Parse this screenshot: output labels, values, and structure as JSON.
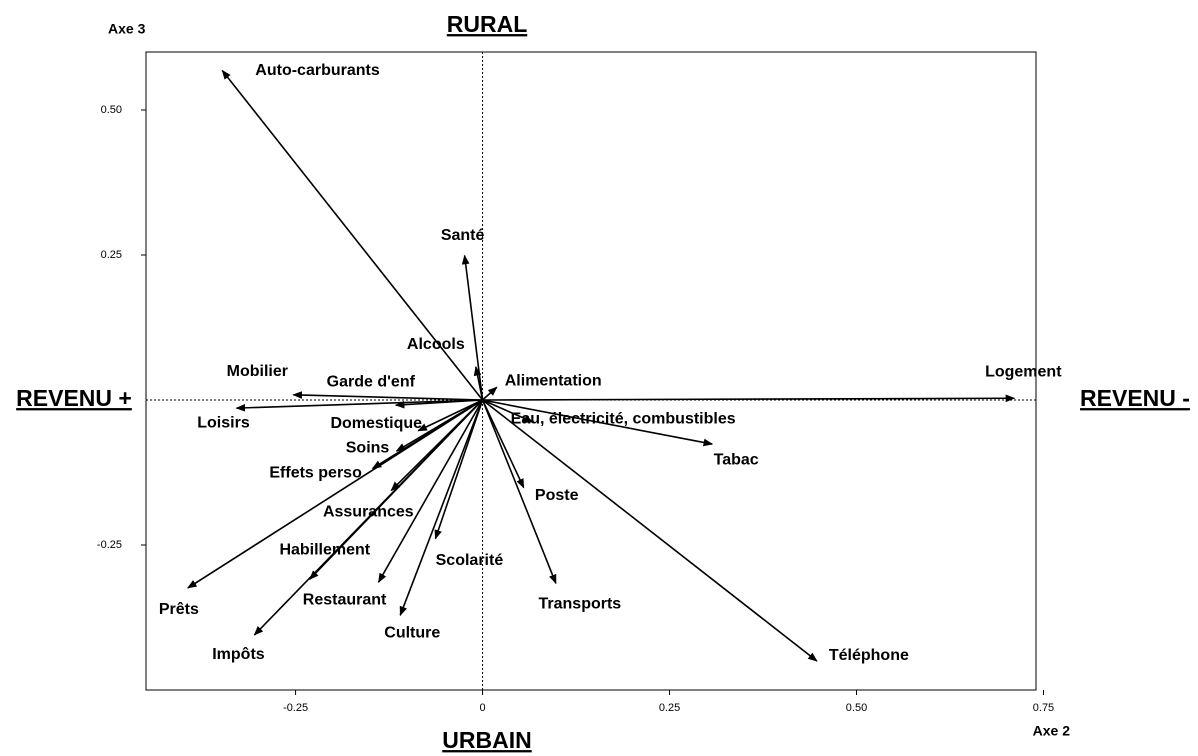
{
  "chart_data": {
    "type": "vector",
    "x_label": "Axe 2",
    "y_label": "Axe 3",
    "annotations": {
      "top": "RURAL",
      "bottom": "URBAIN",
      "left": "REVENU +",
      "right": "REVENU -"
    },
    "xlim": [
      -0.45,
      0.74
    ],
    "ylim": [
      -0.5,
      0.6
    ],
    "xticks": [
      -0.25,
      0,
      0.25,
      {
        "value": 0.5,
        "label": "0.50"
      },
      {
        "value": 0.75,
        "label": "0.75"
      }
    ],
    "yticks": [
      {
        "value": 0.5,
        "label": "0.50"
      },
      0.25,
      -0.25
    ],
    "color": "#000000",
    "points": [
      {
        "label": "Auto-carburants",
        "x": -0.348,
        "y": 0.568
      },
      {
        "label": "Santé",
        "x": -0.024,
        "y": 0.249
      },
      {
        "label": "Alcools",
        "x": -0.009,
        "y": 0.057
      },
      {
        "label": "Alimentation",
        "x": 0.019,
        "y": 0.022
      },
      {
        "label": "Logement",
        "x": 0.711,
        "y": 0.003
      },
      {
        "label": "Mobilier",
        "x": -0.253,
        "y": 0.009
      },
      {
        "label": "Garde d'enf",
        "x": -0.116,
        "y": -0.009
      },
      {
        "label": "Loisirs",
        "x": -0.329,
        "y": -0.014
      },
      {
        "label": "Domestique",
        "x": -0.086,
        "y": -0.053
      },
      {
        "label": "Soins",
        "x": -0.115,
        "y": -0.088
      },
      {
        "label": "Effets perso",
        "x": -0.147,
        "y": -0.118
      },
      {
        "label": "Assurances",
        "x": -0.122,
        "y": -0.156
      },
      {
        "label": "Habillement",
        "x": -0.231,
        "y": -0.309
      },
      {
        "label": "Prêts",
        "x": -0.394,
        "y": -0.324
      },
      {
        "label": "Impôts",
        "x": -0.305,
        "y": -0.405
      },
      {
        "label": "Restaurant",
        "x": -0.139,
        "y": -0.314
      },
      {
        "label": "Culture",
        "x": -0.11,
        "y": -0.371
      },
      {
        "label": "Scolarité",
        "x": -0.063,
        "y": -0.239
      },
      {
        "label": "Poste",
        "x": 0.055,
        "y": -0.151
      },
      {
        "label": "Transports",
        "x": 0.098,
        "y": -0.316
      },
      {
        "label": "Téléphone",
        "x": 0.447,
        "y": -0.45
      },
      {
        "label": "Eau, électricité, combustibles",
        "x": 0.067,
        "y": -0.038
      },
      {
        "label": "Tabac",
        "x": 0.307,
        "y": -0.076
      }
    ]
  }
}
